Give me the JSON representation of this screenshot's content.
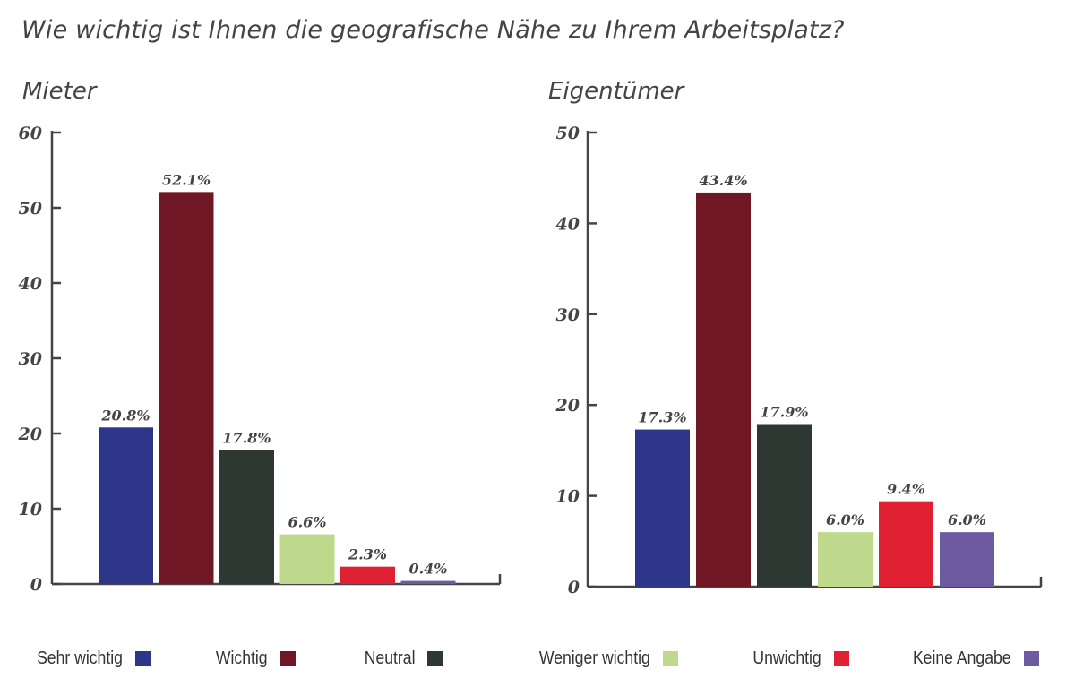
{
  "page": {
    "title": "Wie wichtig ist Ihnen die geografische Nähe zu Ihrem Arbeitsplatz?"
  },
  "legend": [
    {
      "label": "Sehr wichtig",
      "color": "#2e368a"
    },
    {
      "label": "Wichtig",
      "color": "#701726"
    },
    {
      "label": "Neutral",
      "color": "#2e3832"
    },
    {
      "label": "Weniger wichtig",
      "color": "#bfd98c"
    },
    {
      "label": "Unwichtig",
      "color": "#e02133"
    },
    {
      "label": "Keine Angabe",
      "color": "#6e5aa0"
    }
  ],
  "chart_data": [
    {
      "type": "bar",
      "title": "Mieter",
      "categories": [
        "Sehr wichtig",
        "Wichtig",
        "Neutral",
        "Weniger wichtig",
        "Unwichtig",
        "Keine Angabe"
      ],
      "values": [
        20.8,
        52.1,
        17.8,
        6.6,
        2.3,
        0.4
      ],
      "data_labels": [
        "20.8%",
        "52.1%",
        "17.8%",
        "6.6%",
        "2.3%",
        "0.4%"
      ],
      "colors": [
        "#2e368a",
        "#701726",
        "#2e3832",
        "#bfd98c",
        "#e02133",
        "#6e5aa0"
      ],
      "ylim": [
        0,
        60
      ],
      "yticks": [
        0,
        10,
        20,
        30,
        40,
        50,
        60
      ],
      "grid": false,
      "legend": "bottom"
    },
    {
      "type": "bar",
      "title": "Eigentümer",
      "categories": [
        "Sehr wichtig",
        "Wichtig",
        "Neutral",
        "Weniger wichtig",
        "Unwichtig",
        "Keine Angabe"
      ],
      "values": [
        17.3,
        43.4,
        17.9,
        6.0,
        9.4,
        6.0
      ],
      "data_labels": [
        "17.3%",
        "43.4%",
        "17.9%",
        "6.0%",
        "9.4%",
        "6.0%"
      ],
      "colors": [
        "#2e368a",
        "#701726",
        "#2e3832",
        "#bfd98c",
        "#e02133",
        "#6e5aa0"
      ],
      "ylim": [
        0,
        50
      ],
      "yticks": [
        0,
        10,
        20,
        30,
        40,
        50
      ],
      "grid": false,
      "legend": "bottom"
    }
  ]
}
